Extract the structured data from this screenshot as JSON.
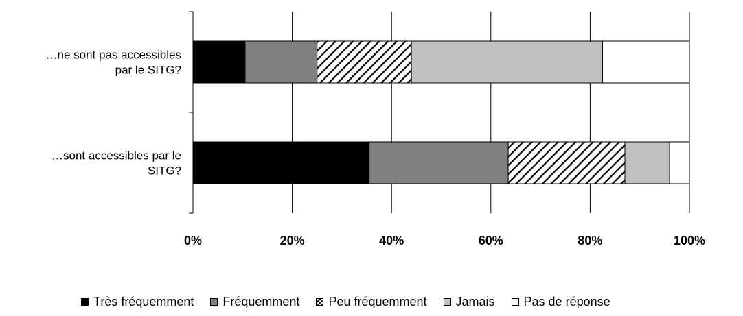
{
  "chart_data": {
    "type": "bar",
    "orientation": "horizontal",
    "stacked": "percent",
    "categories": [
      "…ne sont pas accessibles par le SITG?",
      "…sont accessibles par le SITG?"
    ],
    "category_lines": [
      [
        "…ne sont pas accessibles",
        "par le SITG?"
      ],
      [
        "…sont accessibles par le",
        "SITG?"
      ]
    ],
    "series": [
      {
        "name": "Très fréquemment",
        "values": [
          10.5,
          35.5
        ],
        "color": "#000000",
        "pattern": "solid"
      },
      {
        "name": "Fréquemment",
        "values": [
          14.5,
          28.0
        ],
        "color": "#808080",
        "pattern": "solid"
      },
      {
        "name": "Peu fréquemment",
        "values": [
          19.0,
          23.5
        ],
        "color": "#ffffff",
        "pattern": "diagonal-hatch"
      },
      {
        "name": "Jamais",
        "values": [
          38.5,
          9.0
        ],
        "color": "#c0c0c0",
        "pattern": "solid"
      },
      {
        "name": "Pas de réponse",
        "values": [
          17.5,
          4.0
        ],
        "color": "#ffffff",
        "pattern": "solid"
      }
    ],
    "xlim": [
      0,
      100
    ],
    "xticks": [
      "0%",
      "20%",
      "40%",
      "60%",
      "80%",
      "100%"
    ],
    "grid": true,
    "legend_position": "bottom"
  }
}
